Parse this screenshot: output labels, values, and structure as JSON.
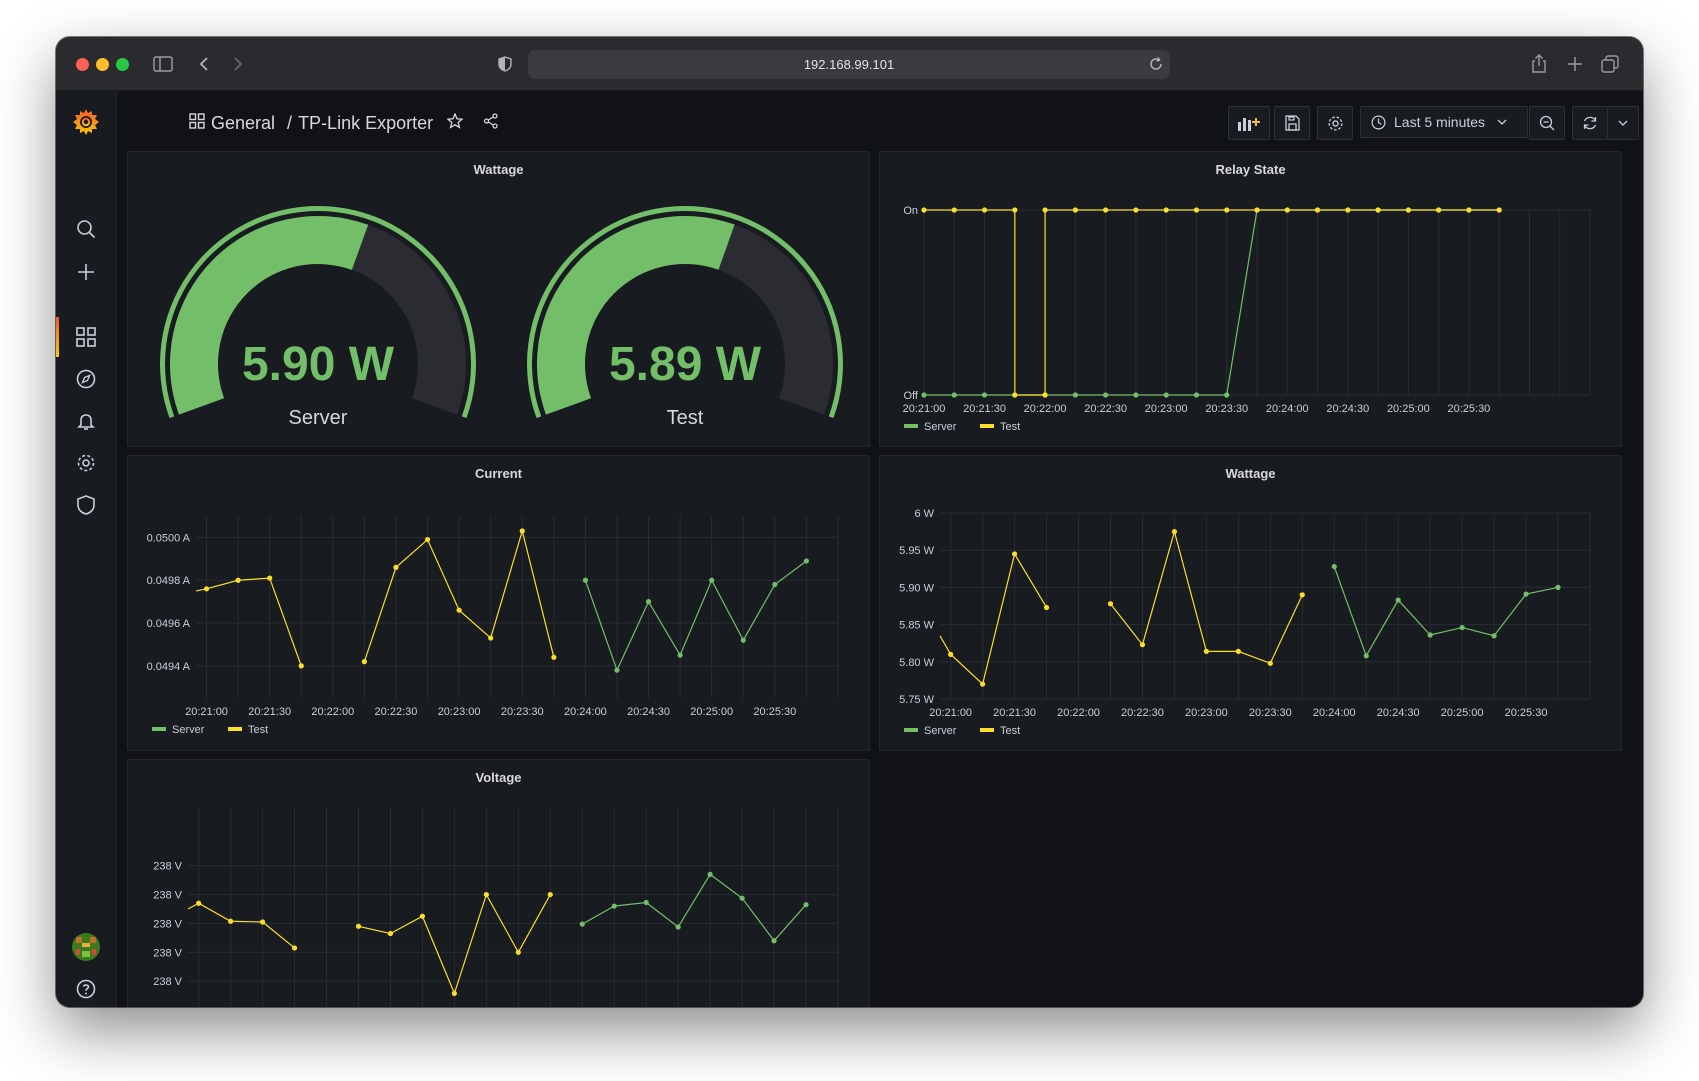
{
  "browser": {
    "url": "192.168.99.101"
  },
  "breadcrumb": {
    "folder": "General",
    "separator": "/",
    "dashboard": "TP-Link Exporter"
  },
  "toolbar": {
    "time_range": "Last 5 minutes"
  },
  "colors": {
    "server": "#73bf69",
    "test": "#fade2a",
    "gauge_track": "#2a2c31",
    "background": "#111217",
    "panel": "#181b1f"
  },
  "icons": [
    "grafana-logo-icon",
    "search-icon",
    "plus-icon",
    "dashboards-icon",
    "explore-icon",
    "bell-icon",
    "gear-icon",
    "shield-icon",
    "avatar",
    "help-icon"
  ],
  "panels": {
    "wattage_gauge": {
      "title": "Wattage",
      "gauges": [
        {
          "label": "Server",
          "value_text": "5.90 W",
          "value": 5.9,
          "min": 0,
          "max": 10
        },
        {
          "label": "Test",
          "value_text": "5.89 W",
          "value": 5.89,
          "min": 0,
          "max": 10
        }
      ]
    },
    "relay_state": {
      "title": "Relay State",
      "legend": [
        "Server",
        "Test"
      ]
    },
    "current": {
      "title": "Current",
      "legend": [
        "Server",
        "Test"
      ]
    },
    "wattage": {
      "title": "Wattage",
      "legend": [
        "Server",
        "Test"
      ]
    },
    "voltage": {
      "title": "Voltage"
    }
  },
  "chart_data": [
    {
      "id": "relay",
      "type": "line",
      "title": "Relay State",
      "ylim": [
        0,
        1
      ],
      "yticks": [
        {
          "v": 0,
          "label": "Off"
        },
        {
          "v": 1,
          "label": "On"
        }
      ],
      "xticks": [
        "20:21:00",
        "20:21:30",
        "20:22:00",
        "20:22:30",
        "20:23:00",
        "20:23:30",
        "20:24:00",
        "20:24:30",
        "20:25:00",
        "20:25:30"
      ],
      "xrange": [
        0,
        330
      ],
      "series": [
        {
          "name": "Server",
          "color": "#73bf69",
          "points": [
            [
              0,
              0
            ],
            [
              15,
              0
            ],
            [
              30,
              0
            ],
            [
              45,
              0
            ],
            [
              60,
              0
            ],
            [
              75,
              0
            ],
            [
              90,
              0
            ],
            [
              105,
              0
            ],
            [
              120,
              0
            ],
            [
              135,
              0
            ],
            [
              150,
              0
            ],
            [
              165,
              1
            ],
            [
              180,
              1
            ],
            [
              195,
              1
            ],
            [
              210,
              1
            ],
            [
              225,
              1
            ],
            [
              240,
              1
            ],
            [
              255,
              1
            ],
            [
              270,
              1
            ],
            [
              285,
              1
            ]
          ]
        },
        {
          "name": "Test",
          "color": "#fade2a",
          "points": [
            [
              0,
              1
            ],
            [
              15,
              1
            ],
            [
              30,
              1
            ],
            [
              45,
              1
            ],
            [
              45,
              0
            ],
            [
              60,
              0
            ],
            [
              60,
              1
            ],
            [
              75,
              1
            ],
            [
              90,
              1
            ],
            [
              105,
              1
            ],
            [
              120,
              1
            ],
            [
              135,
              1
            ],
            [
              150,
              1
            ],
            [
              165,
              1
            ],
            [
              180,
              1
            ],
            [
              195,
              1
            ],
            [
              210,
              1
            ],
            [
              225,
              1
            ],
            [
              240,
              1
            ],
            [
              255,
              1
            ],
            [
              270,
              1
            ],
            [
              285,
              1
            ]
          ]
        }
      ]
    },
    {
      "id": "current",
      "type": "line",
      "title": "Current",
      "ylim": [
        0.04925,
        0.0501
      ],
      "yticks": [
        {
          "v": 0.0494,
          "label": "0.0494 A"
        },
        {
          "v": 0.0496,
          "label": "0.0496 A"
        },
        {
          "v": 0.0498,
          "label": "0.0498 A"
        },
        {
          "v": 0.05,
          "label": "0.0500 A"
        }
      ],
      "xticks": [
        "20:21:00",
        "20:21:30",
        "20:22:00",
        "20:22:30",
        "20:23:00",
        "20:23:30",
        "20:24:00",
        "20:24:30",
        "20:25:00",
        "20:25:30"
      ],
      "xrange": [
        -5,
        300
      ],
      "series": [
        {
          "name": "Test",
          "color": "#fade2a",
          "segments": [
            [
              [
                -5,
                0.04975
              ],
              [
                0,
                0.04976
              ],
              [
                15,
                0.0498
              ],
              [
                30,
                0.04981
              ],
              [
                45,
                0.0494
              ]
            ],
            [
              [
                75,
                0.04942
              ],
              [
                90,
                0.04986
              ],
              [
                105,
                0.04999
              ],
              [
                120,
                0.04966
              ],
              [
                135,
                0.04953
              ],
              [
                150,
                0.05003
              ],
              [
                165,
                0.04944
              ]
            ]
          ]
        },
        {
          "name": "Server",
          "color": "#73bf69",
          "segments": [
            [
              [
                180,
                0.0498
              ],
              [
                195,
                0.04938
              ],
              [
                210,
                0.0497
              ],
              [
                225,
                0.04945
              ],
              [
                240,
                0.0498
              ],
              [
                255,
                0.04952
              ],
              [
                270,
                0.04978
              ],
              [
                285,
                0.04989
              ]
            ]
          ]
        }
      ]
    },
    {
      "id": "wattage_ts",
      "type": "line",
      "title": "Wattage",
      "ylim": [
        5.75,
        6.0
      ],
      "yticks": [
        {
          "v": 5.75,
          "label": "5.75 W"
        },
        {
          "v": 5.8,
          "label": "5.80 W"
        },
        {
          "v": 5.85,
          "label": "5.85 W"
        },
        {
          "v": 5.9,
          "label": "5.90 W"
        },
        {
          "v": 5.95,
          "label": "5.95 W"
        },
        {
          "v": 6.0,
          "label": "6 W"
        }
      ],
      "xticks": [
        "20:21:00",
        "20:21:30",
        "20:22:00",
        "20:22:30",
        "20:23:00",
        "20:23:30",
        "20:24:00",
        "20:24:30",
        "20:25:00",
        "20:25:30"
      ],
      "xrange": [
        -5,
        300
      ],
      "series": [
        {
          "name": "Test",
          "color": "#fade2a",
          "segments": [
            [
              [
                -5,
                5.835
              ],
              [
                0,
                5.81
              ],
              [
                15,
                5.77
              ],
              [
                30,
                5.945
              ],
              [
                45,
                5.873
              ]
            ],
            [
              [
                75,
                5.878
              ],
              [
                90,
                5.823
              ],
              [
                105,
                5.975
              ],
              [
                120,
                5.814
              ],
              [
                135,
                5.814
              ],
              [
                150,
                5.798
              ],
              [
                165,
                5.89
              ]
            ]
          ]
        },
        {
          "name": "Server",
          "color": "#73bf69",
          "segments": [
            [
              [
                180,
                5.928
              ],
              [
                195,
                5.808
              ],
              [
                210,
                5.883
              ],
              [
                225,
                5.836
              ],
              [
                240,
                5.846
              ],
              [
                255,
                5.835
              ],
              [
                270,
                5.891
              ],
              [
                285,
                5.9
              ]
            ]
          ]
        }
      ]
    },
    {
      "id": "voltage",
      "type": "line",
      "title": "Voltage",
      "ylim": [
        237.92,
        238.2
      ],
      "yticks": [
        {
          "v": 237.96,
          "label": "238 V"
        },
        {
          "v": 238.0,
          "label": "238 V"
        },
        {
          "v": 238.04,
          "label": "238 V"
        },
        {
          "v": 238.08,
          "label": "238 V"
        },
        {
          "v": 238.12,
          "label": "238 V"
        }
      ],
      "xticks": [],
      "xrange": [
        -5,
        300
      ],
      "series": [
        {
          "name": "Test",
          "color": "#fade2a",
          "segments": [
            [
              [
                -5,
                238.06
              ],
              [
                0,
                238.068
              ],
              [
                15,
                238.043
              ],
              [
                30,
                238.042
              ],
              [
                45,
                238.006
              ]
            ],
            [
              [
                75,
                238.036
              ],
              [
                90,
                238.026
              ],
              [
                105,
                238.05
              ],
              [
                120,
                237.943
              ],
              [
                135,
                238.08
              ],
              [
                150,
                238.0
              ],
              [
                165,
                238.08
              ]
            ]
          ]
        },
        {
          "name": "Server",
          "color": "#73bf69",
          "segments": [
            [
              [
                180,
                238.039
              ],
              [
                195,
                238.064
              ],
              [
                210,
                238.069
              ],
              [
                225,
                238.035
              ],
              [
                240,
                238.108
              ],
              [
                255,
                238.075
              ],
              [
                270,
                238.016
              ],
              [
                285,
                238.066
              ]
            ]
          ]
        }
      ]
    }
  ]
}
